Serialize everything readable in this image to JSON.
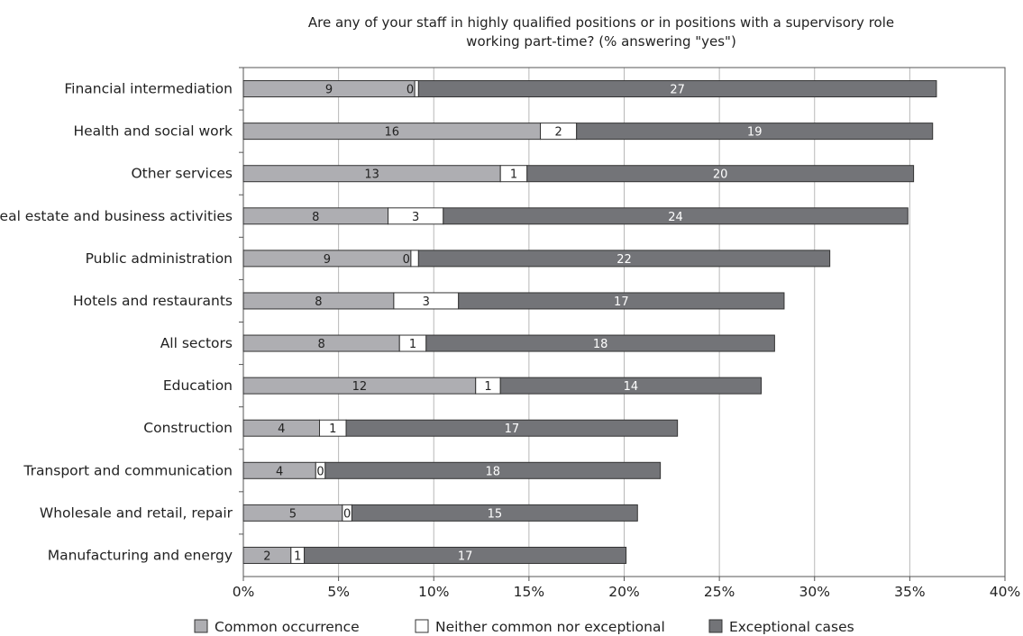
{
  "chart_data": {
    "type": "bar",
    "orientation": "horizontal",
    "stacked": true,
    "title": "Are any of your staff in highly qualified positions or in positions with a supervisory role working part-time? (% answering \"yes\")",
    "title_lines": [
      "Are any of your staff in highly qualified positions or in positions with a supervisory role",
      "working part-time? (% answering \"yes\")"
    ],
    "xlabel": "",
    "ylabel": "",
    "xlim": [
      0,
      40
    ],
    "x_ticks": [
      "0%",
      "5%",
      "10%",
      "15%",
      "20%",
      "25%",
      "30%",
      "35%",
      "40%"
    ],
    "grid": true,
    "legend_position": "bottom",
    "categories": [
      "Financial intermediation",
      "Health and social work",
      "Other services",
      "Real estate and business activities",
      "Public administration",
      "Hotels and restaurants",
      "All sectors",
      "Education",
      "Construction",
      "Transport and communication",
      "Wholesale and retail, repair",
      "Manufacturing and energy"
    ],
    "series": [
      {
        "name": "Common occurrence",
        "color": "#aeaeb2",
        "values": [
          9.0,
          15.6,
          13.5,
          7.6,
          8.8,
          7.9,
          8.2,
          12.2,
          4.0,
          3.8,
          5.2,
          2.5
        ],
        "labels": [
          "9",
          "16",
          "13",
          "8",
          "9",
          "8",
          "8",
          "12",
          "4",
          "4",
          "5",
          "2"
        ]
      },
      {
        "name": "Neither common nor exceptional",
        "color": "#ffffff",
        "values": [
          0.2,
          1.9,
          1.4,
          2.9,
          0.4,
          3.4,
          1.4,
          1.3,
          1.4,
          0.5,
          0.5,
          0.7
        ],
        "labels": [
          "0",
          "2",
          "1",
          "3",
          "0",
          "3",
          "1",
          "1",
          "1",
          "0",
          "0",
          "1"
        ]
      },
      {
        "name": "Exceptional cases",
        "color": "#737478",
        "values": [
          27.2,
          18.7,
          20.3,
          24.4,
          21.6,
          17.1,
          18.3,
          13.7,
          17.4,
          17.6,
          15.0,
          16.9
        ],
        "labels": [
          "27",
          "19",
          "20",
          "24",
          "22",
          "17",
          "18",
          "14",
          "17",
          "18",
          "15",
          "17"
        ]
      }
    ]
  }
}
